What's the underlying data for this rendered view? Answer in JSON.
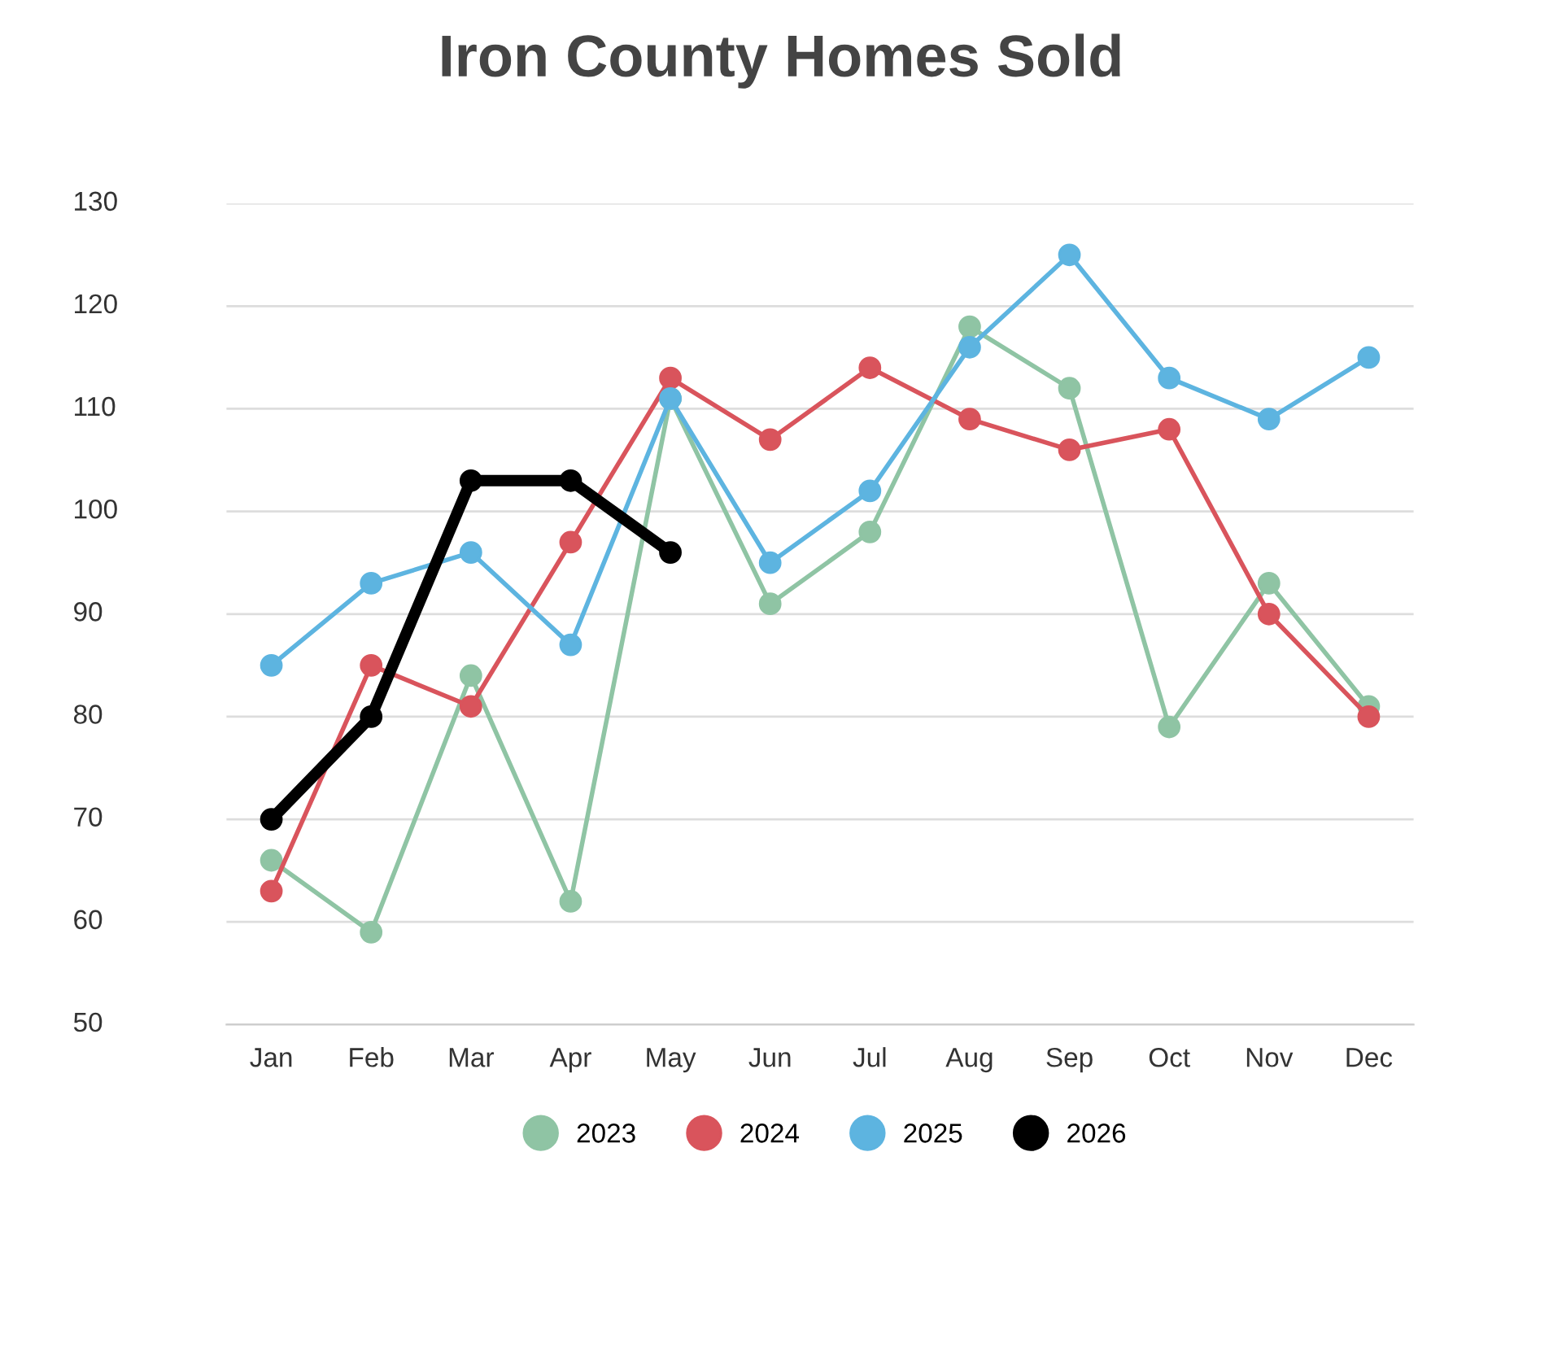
{
  "chart_data": {
    "type": "line",
    "title": "Iron County Homes Sold",
    "categories": [
      "Jan",
      "Feb",
      "Mar",
      "Apr",
      "May",
      "Jun",
      "Jul",
      "Aug",
      "Sep",
      "Oct",
      "Nov",
      "Dec"
    ],
    "series": [
      {
        "name": "2023",
        "color": "#8fc4a4",
        "values": [
          66,
          59,
          84,
          62,
          111,
          91,
          98,
          118,
          112,
          79,
          93,
          81
        ]
      },
      {
        "name": "2024",
        "color": "#d9545c",
        "values": [
          63,
          85,
          81,
          97,
          113,
          107,
          114,
          109,
          106,
          108,
          90,
          80
        ]
      },
      {
        "name": "2025",
        "color": "#5db4e0",
        "values": [
          85,
          93,
          96,
          87,
          111,
          95,
          102,
          116,
          125,
          113,
          109,
          115
        ]
      },
      {
        "name": "2026",
        "color": "#000000",
        "values": [
          70,
          80,
          103,
          103,
          96,
          null,
          null,
          null,
          null,
          null,
          null,
          null
        ]
      }
    ],
    "ylim": [
      50,
      130
    ],
    "yticks": [
      50,
      60,
      70,
      80,
      90,
      100,
      110,
      120,
      130
    ],
    "grid": "y",
    "legend": "bottom",
    "marker": "circle",
    "line_style": "solid"
  }
}
